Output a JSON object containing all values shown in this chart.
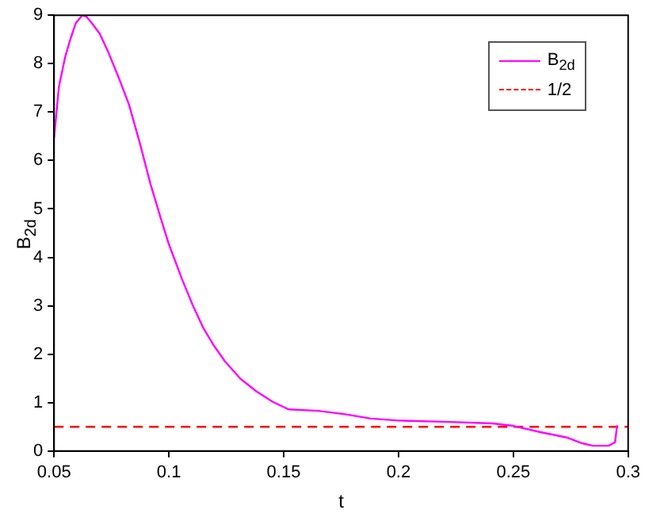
{
  "chart_data": {
    "type": "line",
    "xlabel": "t",
    "ylabel": "B$_{2d}$",
    "xlim": [
      0.05,
      0.3
    ],
    "ylim": [
      0,
      9
    ],
    "xticks": [
      0.05,
      0.1,
      0.15,
      0.2,
      0.25,
      0.3
    ],
    "yticks": [
      0,
      1,
      2,
      3,
      4,
      5,
      6,
      7,
      8,
      9
    ],
    "grid": false,
    "legend": "top right",
    "marker": "none",
    "series": [
      {
        "name": "B$_{2d}$",
        "color": "#ff00ff",
        "line_style": "solid",
        "x": [
          0.05,
          0.0521,
          0.0549,
          0.0572,
          0.0595,
          0.0623,
          0.0641,
          0.0664,
          0.0699,
          0.0734,
          0.078,
          0.0826,
          0.0873,
          0.0919,
          0.0965,
          0.1,
          0.1058,
          0.1104,
          0.115,
          0.1197,
          0.1243,
          0.1312,
          0.1382,
          0.1451,
          0.1521,
          0.165,
          0.1767,
          0.188,
          0.2,
          0.2226,
          0.241,
          0.25,
          0.2618,
          0.2733,
          0.28,
          0.2846,
          0.2915,
          0.2943,
          0.2952
        ],
        "values": [
          6.47,
          7.52,
          8.15,
          8.52,
          8.84,
          9.0,
          8.97,
          8.84,
          8.62,
          8.26,
          7.73,
          7.16,
          6.37,
          5.53,
          4.8,
          4.27,
          3.54,
          3.01,
          2.54,
          2.17,
          1.86,
          1.49,
          1.23,
          1.02,
          0.86,
          0.83,
          0.76,
          0.67,
          0.63,
          0.6,
          0.57,
          0.52,
          0.39,
          0.28,
          0.16,
          0.11,
          0.11,
          0.18,
          0.53
        ]
      },
      {
        "name": "1/2",
        "color": "#ff0000",
        "line_style": "dashed",
        "x": [
          0.05,
          0.3
        ],
        "values": [
          0.5,
          0.5
        ]
      }
    ]
  }
}
